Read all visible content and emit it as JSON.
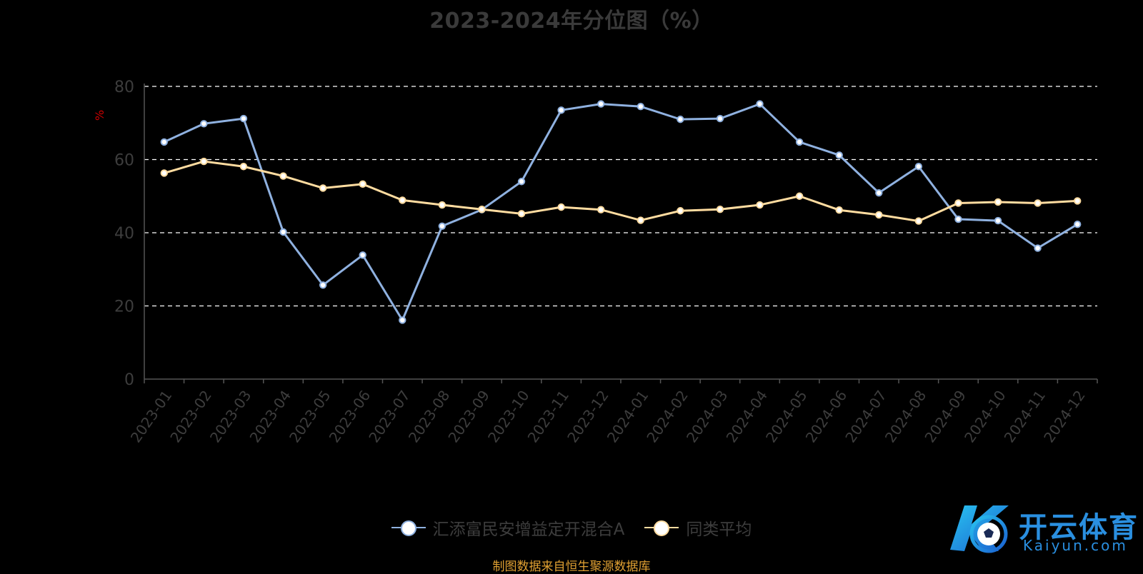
{
  "chart_data": {
    "type": "line",
    "title": "2023-2024年分位图（%）",
    "ylabel": "%",
    "ylim": [
      0,
      80
    ],
    "yticks": [
      0,
      20,
      40,
      60,
      80
    ],
    "grid": true,
    "legend_position": "bottom",
    "categories": [
      "2023-01",
      "2023-02",
      "2023-03",
      "2023-04",
      "2023-05",
      "2023-06",
      "2023-07",
      "2023-08",
      "2023-09",
      "2023-10",
      "2023-11",
      "2023-12",
      "2024-01",
      "2024-02",
      "2024-03",
      "2024-04",
      "2024-05",
      "2024-06",
      "2024-07",
      "2024-08",
      "2024-09",
      "2024-10",
      "2024-11",
      "2024-12"
    ],
    "series": [
      {
        "name": "汇添富民安增益定开混合A",
        "color": "#8fb1e0",
        "values": [
          64.8,
          69.8,
          71.2,
          40.2,
          25.7,
          33.9,
          16.1,
          41.8,
          46.3,
          54.0,
          73.5,
          75.2,
          74.5,
          71.0,
          71.2,
          75.2,
          64.8,
          61.2,
          50.9,
          58.1,
          43.7,
          43.3,
          35.8,
          42.3
        ]
      },
      {
        "name": "同类平均",
        "color": "#ffdca0",
        "values": [
          56.3,
          59.5,
          58.1,
          55.5,
          52.2,
          53.3,
          48.9,
          47.6,
          46.4,
          45.2,
          47.0,
          46.3,
          43.4,
          46.0,
          46.4,
          47.6,
          50.0,
          46.2,
          44.9,
          43.2,
          48.1,
          48.4,
          48.1,
          48.7
        ]
      }
    ]
  },
  "source_text": "制图数据来自恒生聚源数据库",
  "watermark": {
    "cn": "开云体育",
    "en": "Kaiyun.com"
  }
}
